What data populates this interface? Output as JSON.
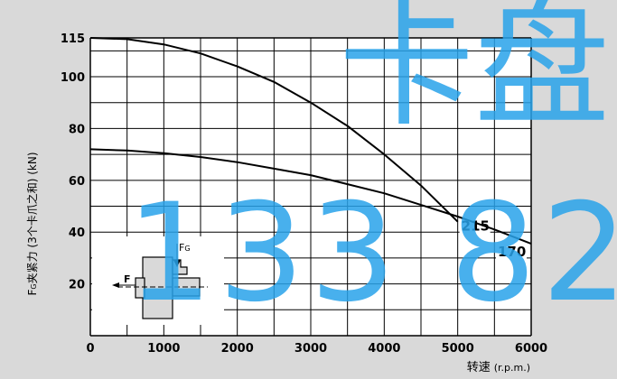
{
  "chart_data": {
    "type": "line",
    "xlabel": "转速",
    "xlabel_unit": "(r.p.m.)",
    "ylabel_main": "F",
    "ylabel_sub": "G",
    "ylabel_rest": "夹紧力 (3个卡爪之和) (kN)",
    "xlim": [
      0,
      6000
    ],
    "ylim": [
      0,
      115
    ],
    "x_ticks": [
      0,
      1000,
      2000,
      3000,
      4000,
      5000,
      6000
    ],
    "y_ticks": [
      20,
      40,
      60,
      80,
      100,
      115
    ],
    "grid": true,
    "series": [
      {
        "name": "215",
        "x": [
          0,
          500,
          1000,
          1500,
          2000,
          2500,
          3000,
          3500,
          4000,
          4500,
          5000
        ],
        "y": [
          115,
          114.5,
          112.5,
          109,
          104,
          98,
          90,
          81,
          70,
          58,
          44
        ]
      },
      {
        "name": "170",
        "x": [
          0,
          500,
          1000,
          1500,
          2000,
          2500,
          3000,
          3500,
          4000,
          4500,
          5000,
          5500,
          6000
        ],
        "y": [
          72,
          71.5,
          70.5,
          69,
          67,
          64.5,
          62,
          58.5,
          55,
          50.5,
          46,
          41,
          35.5
        ]
      }
    ]
  },
  "inset": {
    "force_label": "F",
    "fg_main": "F",
    "fg_sub": "G"
  },
  "watermark": {
    "text_top": "卡盘",
    "text_bottom": "133 82",
    "color": "#29a3ea"
  }
}
